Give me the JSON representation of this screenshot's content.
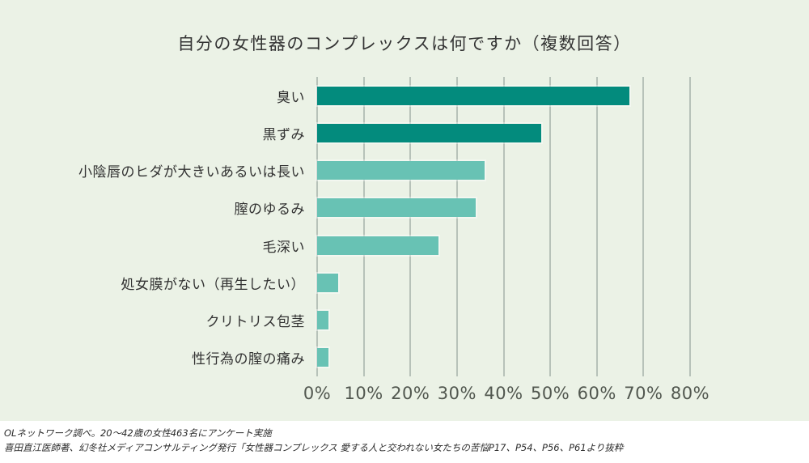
{
  "title": "自分の女性器のコンプレックスは何ですか（複数回答）",
  "chart_data": {
    "type": "bar",
    "orientation": "horizontal",
    "title": "自分の女性器のコンプレックスは何ですか（複数回答）",
    "categories": [
      "臭い",
      "黒ずみ",
      "小陰唇のヒダが大きいあるいは長い",
      "膣のゆるみ",
      "毛深い",
      "処女膜がない（再生したい）",
      "クリトリス包茎",
      "性行為の膣の痛み"
    ],
    "values": [
      67,
      48,
      36,
      34,
      26,
      4.5,
      2.5,
      2.5
    ],
    "unit": "%",
    "xlim": [
      0,
      80
    ],
    "x_ticks": [
      "0%",
      "10%",
      "20%",
      "30%",
      "40%",
      "50%",
      "60%",
      "70%",
      "80%"
    ],
    "grid": true,
    "legend": false,
    "bar_colors": [
      "#038b7d",
      "#038b7d",
      "#68c2b4",
      "#68c2b4",
      "#68c2b4",
      "#68c2b4",
      "#68c2b4",
      "#68c2b4"
    ]
  },
  "colors": {
    "panel_background": "#ebf2e6",
    "bar_dark": "#038b7d",
    "bar_light": "#68c2b4",
    "gridline": "#b7c2b9",
    "text": "#333333",
    "tick_text": "#51574f"
  },
  "footer": {
    "line1": "OLネットワーク調べ。20〜42歳の女性463名にアンケート実施",
    "line2": "喜田直江医師著、幻冬社メディアコンサルティング発行「女性器コンプレックス 愛する人と交われない女たちの苦悩P17、P54、P56、P61より抜粋"
  }
}
